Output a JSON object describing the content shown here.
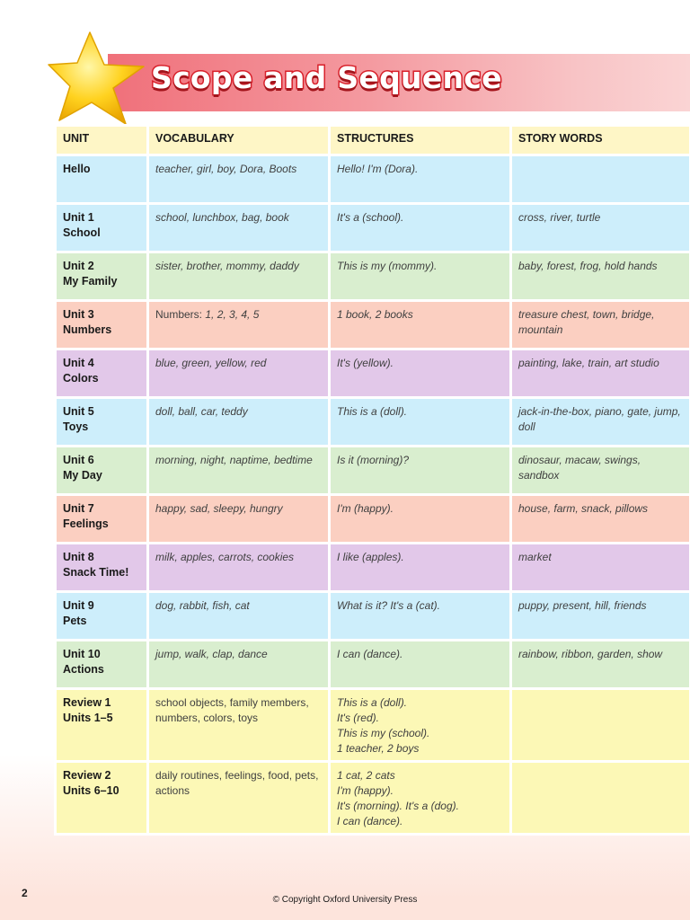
{
  "header": {
    "title": "Scope and Sequence"
  },
  "colors": {
    "banner": "#f0707a",
    "title_outline": "#d8202a",
    "star": "#ffd21f",
    "header_row": "#fef6c6"
  },
  "table": {
    "columns": [
      "UNIT",
      "VOCABULARY",
      "STRUCTURES",
      "STORY WORDS"
    ],
    "rows": [
      {
        "color": "blue",
        "unit": [
          "Hello"
        ],
        "vocabulary": "teacher, girl, boy, Dora, Boots",
        "structures": [
          "Hello! I'm (Dora)."
        ],
        "story_words": ""
      },
      {
        "color": "blue",
        "unit": [
          "Unit 1",
          "School"
        ],
        "vocabulary": "school, lunchbox, bag, book",
        "structures": [
          "It's a (school)."
        ],
        "story_words": "cross, river, turtle"
      },
      {
        "color": "green",
        "unit": [
          "Unit 2",
          "My Family"
        ],
        "vocabulary": "sister, brother, mommy, daddy",
        "structures": [
          "This is my (mommy)."
        ],
        "story_words": "baby, forest, frog, hold hands"
      },
      {
        "color": "peach",
        "unit": [
          "Unit 3",
          "Numbers"
        ],
        "vocabulary_prefix": "Numbers: ",
        "vocabulary": "1, 2, 3, 4, 5",
        "structures": [
          "1 book, 2 books"
        ],
        "story_words": "treasure chest, town, bridge, mountain"
      },
      {
        "color": "purple",
        "unit": [
          "Unit 4",
          "Colors"
        ],
        "vocabulary": "blue, green, yellow, red",
        "structures": [
          "It's (yellow)."
        ],
        "story_words": "painting, lake, train, art studio"
      },
      {
        "color": "blue",
        "unit": [
          "Unit 5",
          "Toys"
        ],
        "vocabulary": "doll, ball, car, teddy",
        "structures": [
          "This is a (doll)."
        ],
        "story_words": "jack-in-the-box, piano, gate, jump, doll"
      },
      {
        "color": "green",
        "unit": [
          "Unit 6",
          "My Day"
        ],
        "vocabulary": "morning, night, naptime, bedtime",
        "structures": [
          "Is it (morning)?"
        ],
        "story_words": "dinosaur, macaw, swings, sandbox"
      },
      {
        "color": "peach",
        "unit": [
          "Unit 7",
          "Feelings"
        ],
        "vocabulary": "happy, sad, sleepy, hungry",
        "structures": [
          "I'm (happy)."
        ],
        "story_words": "house, farm, snack, pillows"
      },
      {
        "color": "purple",
        "unit": [
          "Unit 8",
          "Snack Time!"
        ],
        "vocabulary": "milk, apples, carrots, cookies",
        "structures": [
          "I like (apples)."
        ],
        "story_words": "market"
      },
      {
        "color": "blue",
        "unit": [
          "Unit 9",
          "Pets"
        ],
        "vocabulary": "dog, rabbit, fish, cat",
        "structures": [
          "What is it? It's a (cat)."
        ],
        "story_words": "puppy, present, hill, friends"
      },
      {
        "color": "green",
        "unit": [
          "Unit 10",
          "Actions"
        ],
        "vocabulary": "jump, walk, clap, dance",
        "structures": [
          "I can (dance)."
        ],
        "story_words": "rainbow, ribbon, garden, show"
      },
      {
        "color": "yellow",
        "unit": [
          "Review 1",
          "Units 1–5"
        ],
        "vocabulary": "school objects, family members, numbers, colors, toys",
        "structures": [
          "This is a (doll).",
          "It's (red).",
          "This is my (school).",
          "1 teacher, 2 boys"
        ],
        "story_words": ""
      },
      {
        "color": "yellow",
        "unit": [
          "Review 2",
          "Units 6–10"
        ],
        "vocabulary": "daily routines, feelings, food, pets, actions",
        "structures": [
          "1 cat, 2 cats",
          "I'm (happy).",
          "It's (morning). It's a (dog).",
          "I can (dance)."
        ],
        "story_words": ""
      }
    ]
  },
  "footer": {
    "page_number": "2",
    "copyright": "© Copyright Oxford University Press"
  }
}
